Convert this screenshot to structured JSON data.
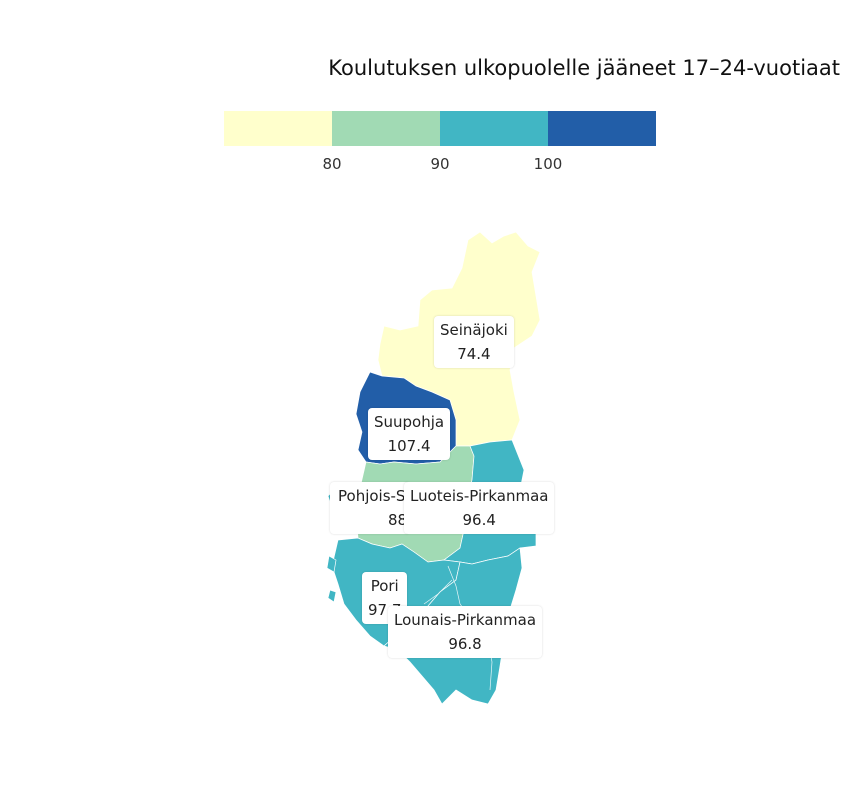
{
  "map": {
    "title": "Koulutuksen ulkopuolelle jääneet 17–24-vuotiaat",
    "legend": {
      "colors": [
        "#ffffcc",
        "#a1dab4",
        "#41b6c4",
        "#225ea8"
      ],
      "ticks": [
        "80",
        "90",
        "100"
      ]
    },
    "regions": [
      {
        "name": "Seinäjoki",
        "value": "74.4",
        "color": "#ffffcc"
      },
      {
        "name": "Suupohja",
        "value": "107.4",
        "color": "#225ea8"
      },
      {
        "name": "Pohjois-Satakunta",
        "value": "88.7",
        "color": "#a1dab4"
      },
      {
        "name": "Luoteis-Pirkanmaa",
        "value": "96.4",
        "color": "#41b6c4"
      },
      {
        "name": "Pori",
        "value": "97.7",
        "color": "#41b6c4"
      },
      {
        "name": "Lounais-Pirkanmaa",
        "value": "96.8",
        "color": "#41b6c4"
      }
    ]
  }
}
